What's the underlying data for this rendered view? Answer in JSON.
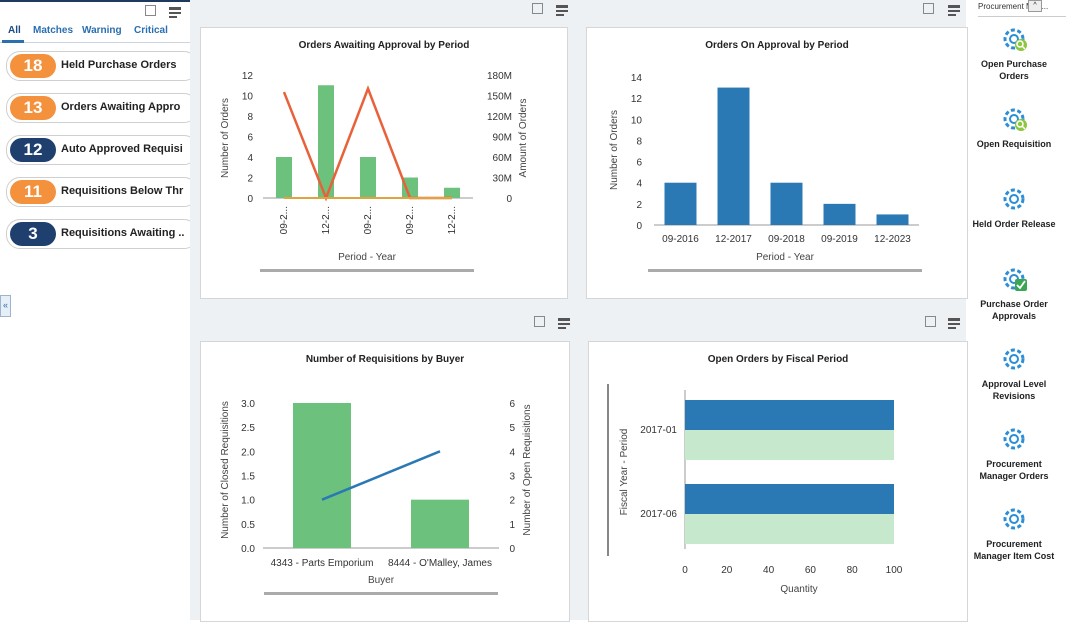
{
  "left": {
    "tabs": [
      "All",
      "Matches",
      "Warning",
      "Critical"
    ],
    "collapse_glyph": "«",
    "cards": [
      {
        "count": "18",
        "label": "Held Purchase Orders",
        "color": "orange"
      },
      {
        "count": "13",
        "label": "Orders Awaiting Appro",
        "color": "orange"
      },
      {
        "count": "12",
        "label": "Auto Approved Requisi",
        "color": "navy"
      },
      {
        "count": "11",
        "label": "Requisitions Below Thr",
        "color": "orange"
      },
      {
        "count": "3",
        "label": "Requisitions Awaiting ..",
        "color": "navy"
      }
    ]
  },
  "right": {
    "header": "Procurement Man...",
    "apps": [
      {
        "label": "Open Purchase Orders",
        "icon": "gear-search-icon"
      },
      {
        "label": "Open Requisition",
        "icon": "gear-search-icon"
      },
      {
        "label": "Held Order Release",
        "icon": "gear-icon"
      },
      {
        "label": "Purchase Order Approvals",
        "icon": "gear-check-icon"
      },
      {
        "label": "Approval Level Revisions",
        "icon": "gear-icon"
      },
      {
        "label": "Procurement Manager Orders",
        "icon": "gear-icon"
      },
      {
        "label": "Procurement Manager Item Cost",
        "icon": "gear-icon"
      }
    ]
  },
  "colors": {
    "green": "#6cc27c",
    "orange_line": "#e8613a",
    "blue": "#2b79b4",
    "light_green": "#c6e8cc",
    "navy": "#1f3f6f",
    "orange": "#f4913d"
  },
  "chart_data": [
    {
      "type": "bar",
      "title": "Orders Awaiting Approval by Period",
      "xlabel": "Period - Year",
      "ylabel": "Number of Orders",
      "y2label": "Amount of Orders",
      "categories": [
        "09-2...",
        "12-2...",
        "09-2...",
        "09-2...",
        "12-2..."
      ],
      "ylim": [
        0,
        12
      ],
      "yticks": [
        "0",
        "2",
        "4",
        "6",
        "8",
        "10",
        "12"
      ],
      "y2ticks": [
        "0",
        "30M",
        "60M",
        "90M",
        "120M",
        "150M",
        "180M"
      ],
      "series": [
        {
          "kind": "bar",
          "values": [
            4,
            11,
            4,
            2,
            1
          ]
        },
        {
          "kind": "line",
          "values": [
            155000000,
            0,
            160000000,
            0,
            0
          ]
        }
      ]
    },
    {
      "type": "bar",
      "title": "Orders On Approval by Period",
      "xlabel": "Period - Year",
      "ylabel": "Number of Orders",
      "categories": [
        "09-2016",
        "12-2017",
        "09-2018",
        "09-2019",
        "12-2023"
      ],
      "ylim": [
        0,
        14
      ],
      "yticks": [
        "0",
        "2",
        "4",
        "6",
        "8",
        "10",
        "12",
        "14"
      ],
      "values": [
        4,
        13,
        4,
        2,
        1
      ]
    },
    {
      "type": "bar",
      "title": "Number of Requisitions by Buyer",
      "xlabel": "Buyer",
      "ylabel": "Number of Closed Requisitions",
      "y2label": "Number of Open Requisitions",
      "categories": [
        "4343 - Parts Emporium",
        "8444 - O'Malley, James"
      ],
      "ylim": [
        0,
        3
      ],
      "yticks": [
        "0.0",
        "0.5",
        "1.0",
        "1.5",
        "2.0",
        "2.5",
        "3.0"
      ],
      "y2ticks": [
        "0",
        "1",
        "2",
        "3",
        "4",
        "5",
        "6"
      ],
      "series": [
        {
          "kind": "bar",
          "values": [
            3,
            1
          ]
        },
        {
          "kind": "line",
          "values": [
            2,
            4
          ]
        }
      ]
    },
    {
      "type": "bar",
      "title": "Open Orders by Fiscal Period",
      "xlabel": "Quantity",
      "ylabel": "Fiscal Year - Period",
      "categories": [
        "2017-01",
        "2017-06"
      ],
      "xlim": [
        0,
        100
      ],
      "xticks": [
        "0",
        "20",
        "40",
        "60",
        "80",
        "100"
      ],
      "series": [
        {
          "kind": "bar",
          "values": [
            100,
            100
          ]
        },
        {
          "kind": "bar",
          "values": [
            100,
            100
          ]
        }
      ]
    }
  ]
}
